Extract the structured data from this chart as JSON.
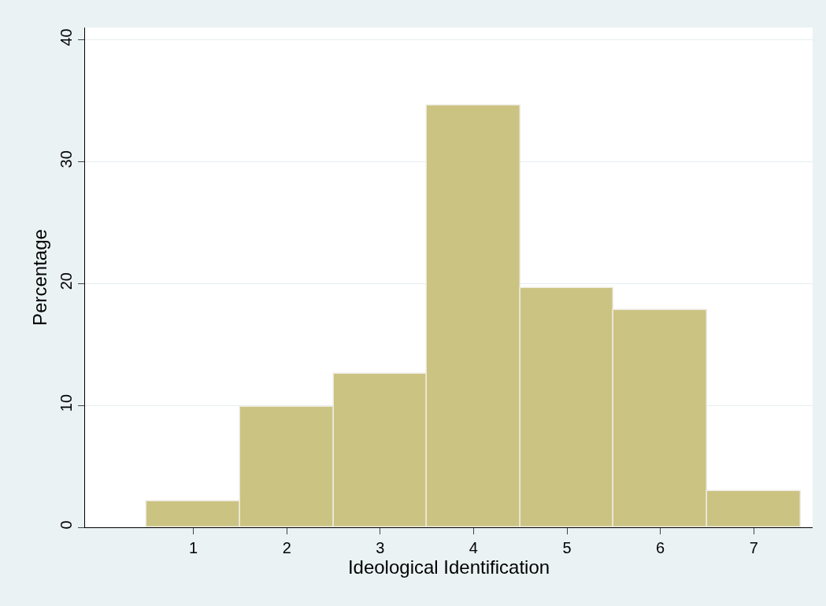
{
  "chart_data": {
    "type": "histogram",
    "xlabel": "Ideological Identification",
    "ylabel": "Percentage",
    "bins": [
      0.5,
      1.5,
      2.5,
      3.5,
      4.5,
      5.5,
      6.5,
      7.5
    ],
    "values": [
      2.1,
      9.9,
      12.6,
      34.6,
      19.6,
      17.8,
      3.0
    ],
    "color": "#cbc382",
    "xlim": [
      -0.16,
      7.63
    ],
    "xticks": [
      1,
      2,
      3,
      4,
      5,
      6,
      7
    ],
    "ylim": [
      0,
      41
    ],
    "yticks": [
      0,
      10,
      20,
      30,
      40
    ],
    "grid": "y"
  }
}
